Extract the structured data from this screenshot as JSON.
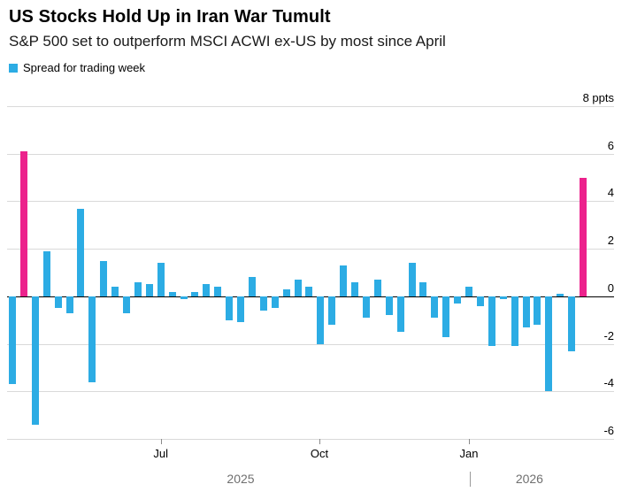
{
  "header": {
    "title": "US Stocks Hold Up in Iran War Tumult",
    "subtitle": "S&P 500 set to outperform MSCI ACWI ex-US by most since April",
    "legend_label": "Spread for trading week"
  },
  "colors": {
    "bar": "#2cace4",
    "highlight": "#ec228c",
    "grid": "#d9d9d9",
    "zero_line": "#000000",
    "year_text": "#6f6f6f"
  },
  "chart_data": {
    "type": "bar",
    "title": "US Stocks Hold Up in Iran War Tumult",
    "subtitle": "S&P 500 set to outperform MSCI ACWI ex-US by most since April",
    "legend": [
      "Spread for trading week"
    ],
    "unit": "ppts",
    "ylabel": "",
    "xlabel": "",
    "ylim": [
      -6,
      8
    ],
    "grid": true,
    "legend_position": "top-left",
    "yticks": [
      8,
      6,
      4,
      2,
      0,
      -2,
      -4,
      -6
    ],
    "ytick_top_label": "8 ppts",
    "values": [
      -3.7,
      6.1,
      -5.4,
      1.9,
      -0.5,
      -0.7,
      3.7,
      -3.6,
      1.5,
      0.4,
      -0.7,
      0.6,
      0.5,
      1.4,
      0.2,
      -0.1,
      0.2,
      0.5,
      0.4,
      -1.0,
      -1.1,
      0.8,
      -0.6,
      -0.5,
      0.3,
      0.7,
      0.4,
      -2.0,
      -1.2,
      1.3,
      0.6,
      -0.9,
      0.7,
      -0.8,
      -1.5,
      1.4,
      0.6,
      -0.9,
      -1.7,
      -0.3,
      0.4,
      -0.4,
      -2.1,
      -0.1,
      -2.1,
      -1.3,
      -1.2,
      -4.0,
      0.1,
      -2.3,
      5.0
    ],
    "highlight_indices": [
      1,
      50
    ],
    "xticks": [
      {
        "label": "Jul",
        "pos": 13.0
      },
      {
        "label": "Oct",
        "pos": 26.9
      },
      {
        "label": "Jan",
        "pos": 40.0
      }
    ],
    "years": [
      {
        "label": "2025",
        "pos": 20.0
      },
      {
        "label": "2026",
        "pos": 45.3
      }
    ],
    "year_divider_pos": 40.1
  }
}
